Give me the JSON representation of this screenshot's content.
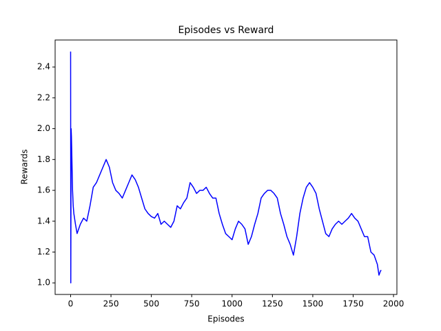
{
  "chart_data": {
    "type": "line",
    "title": "Episodes vs Reward",
    "xlabel": "Episodes",
    "ylabel": "Rewards",
    "xlim": [
      -96,
      2021
    ],
    "ylim": [
      0.925,
      2.575
    ],
    "xticks": [
      0,
      250,
      500,
      750,
      1000,
      1250,
      1500,
      1750,
      2000
    ],
    "yticks": [
      {
        "value": 1,
        "label": "1.0"
      },
      1.2,
      1.4,
      1.6,
      1.8,
      {
        "value": 2,
        "label": "2.0"
      },
      2.2,
      2.4
    ],
    "grid": false,
    "series": [
      {
        "name": "Rewards",
        "color": "#0000ff",
        "x": [
          0,
          1,
          3,
          5,
          8,
          12,
          16,
          20,
          30,
          40,
          60,
          80,
          100,
          120,
          140,
          160,
          180,
          200,
          220,
          240,
          260,
          280,
          300,
          320,
          340,
          360,
          380,
          400,
          420,
          440,
          460,
          480,
          500,
          520,
          540,
          560,
          580,
          600,
          620,
          640,
          660,
          680,
          700,
          720,
          740,
          760,
          780,
          800,
          820,
          840,
          860,
          880,
          900,
          920,
          940,
          960,
          980,
          1000,
          1020,
          1040,
          1060,
          1080,
          1100,
          1120,
          1140,
          1160,
          1180,
          1200,
          1220,
          1240,
          1260,
          1280,
          1300,
          1320,
          1340,
          1360,
          1380,
          1400,
          1420,
          1440,
          1460,
          1480,
          1500,
          1520,
          1540,
          1560,
          1580,
          1600,
          1620,
          1640,
          1660,
          1680,
          1700,
          1720,
          1740,
          1760,
          1780,
          1800,
          1820,
          1840,
          1860,
          1880,
          1900,
          1910,
          1920,
          1925
        ],
        "values": [
          2.5,
          1.0,
          2.0,
          1.95,
          1.8,
          1.6,
          1.5,
          1.45,
          1.38,
          1.32,
          1.38,
          1.42,
          1.4,
          1.5,
          1.62,
          1.65,
          1.7,
          1.75,
          1.8,
          1.75,
          1.65,
          1.6,
          1.58,
          1.55,
          1.6,
          1.65,
          1.7,
          1.67,
          1.62,
          1.55,
          1.48,
          1.45,
          1.43,
          1.42,
          1.45,
          1.38,
          1.4,
          1.38,
          1.36,
          1.4,
          1.5,
          1.48,
          1.52,
          1.55,
          1.65,
          1.62,
          1.58,
          1.6,
          1.6,
          1.62,
          1.58,
          1.55,
          1.55,
          1.45,
          1.38,
          1.32,
          1.3,
          1.28,
          1.35,
          1.4,
          1.38,
          1.35,
          1.25,
          1.3,
          1.38,
          1.45,
          1.55,
          1.58,
          1.6,
          1.6,
          1.58,
          1.55,
          1.45,
          1.38,
          1.3,
          1.25,
          1.18,
          1.3,
          1.45,
          1.55,
          1.62,
          1.65,
          1.62,
          1.58,
          1.48,
          1.4,
          1.32,
          1.3,
          1.35,
          1.38,
          1.4,
          1.38,
          1.4,
          1.42,
          1.45,
          1.42,
          1.4,
          1.35,
          1.3,
          1.3,
          1.2,
          1.18,
          1.12,
          1.05,
          1.08,
          1.08
        ]
      }
    ]
  }
}
